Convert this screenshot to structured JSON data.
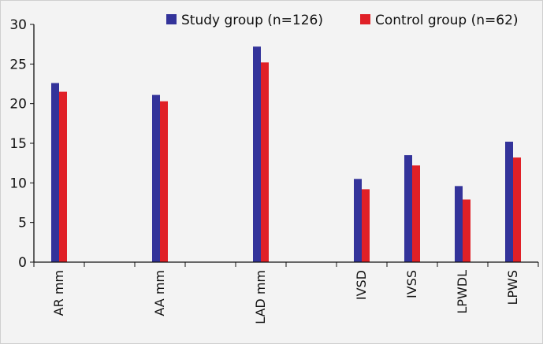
{
  "chart_data": {
    "type": "bar",
    "title": "",
    "xlabel": "",
    "ylabel": "",
    "ylim": [
      0,
      30
    ],
    "y_ticks": [
      "0",
      "5",
      "10",
      "15",
      "20",
      "25",
      "30"
    ],
    "categories": [
      "AR mm",
      "",
      "AA mm",
      "",
      "LAD mm",
      "",
      "IVSD",
      "IVSS",
      "LPWDL",
      "LPWS"
    ],
    "series": [
      {
        "name": "Study group (n=126)",
        "color": "#33339a",
        "values": [
          22.6,
          null,
          21.1,
          null,
          27.2,
          null,
          10.5,
          13.5,
          9.6,
          15.2
        ]
      },
      {
        "name": "Control group (n=62)",
        "color": "#e02027",
        "values": [
          21.5,
          null,
          20.3,
          null,
          25.2,
          null,
          9.2,
          12.2,
          7.9,
          13.2
        ]
      }
    ],
    "legend_position": "top-right",
    "grid": false
  }
}
